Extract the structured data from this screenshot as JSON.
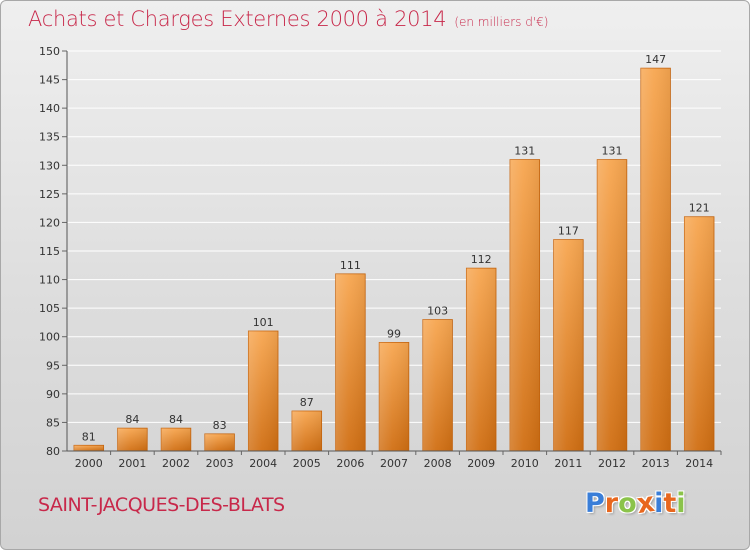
{
  "header": {
    "title": "Achats et Charges Externes 2000 à 2014",
    "subtitle": "(en milliers d'€)"
  },
  "footer": {
    "commune": "SAINT-JACQUES-DES-BLATS",
    "logo": "Proxiti",
    "logo_letters": [
      "P",
      "r",
      "o",
      "x",
      "i",
      "t",
      "i"
    ],
    "logo_colors": [
      "#3a7ed8",
      "#e8671e",
      "#8bc34a",
      "#e8671e",
      "#3a7ed8",
      "#e8671e",
      "#8bc34a"
    ]
  },
  "colors": {
    "title": "#c8284a",
    "bar_light": "#f7a650",
    "bar_dark": "#d06e12",
    "grid": "#ffffff",
    "axis_text": "#333333"
  },
  "chart_data": {
    "type": "bar",
    "title": "Achats et Charges Externes 2000 à 2014",
    "subtitle": "(en milliers d'€)",
    "categories": [
      "2000",
      "2001",
      "2002",
      "2003",
      "2004",
      "2005",
      "2006",
      "2007",
      "2008",
      "2009",
      "2010",
      "2011",
      "2012",
      "2013",
      "2014"
    ],
    "values": [
      81,
      84,
      84,
      83,
      101,
      87,
      111,
      99,
      103,
      112,
      131,
      117,
      131,
      147,
      121
    ],
    "ylim": [
      80,
      150
    ],
    "yticks": [
      80,
      85,
      90,
      95,
      100,
      105,
      110,
      115,
      120,
      125,
      130,
      135,
      140,
      145,
      150
    ],
    "xlabel": "",
    "ylabel": "",
    "grid": true,
    "legend": "none"
  }
}
